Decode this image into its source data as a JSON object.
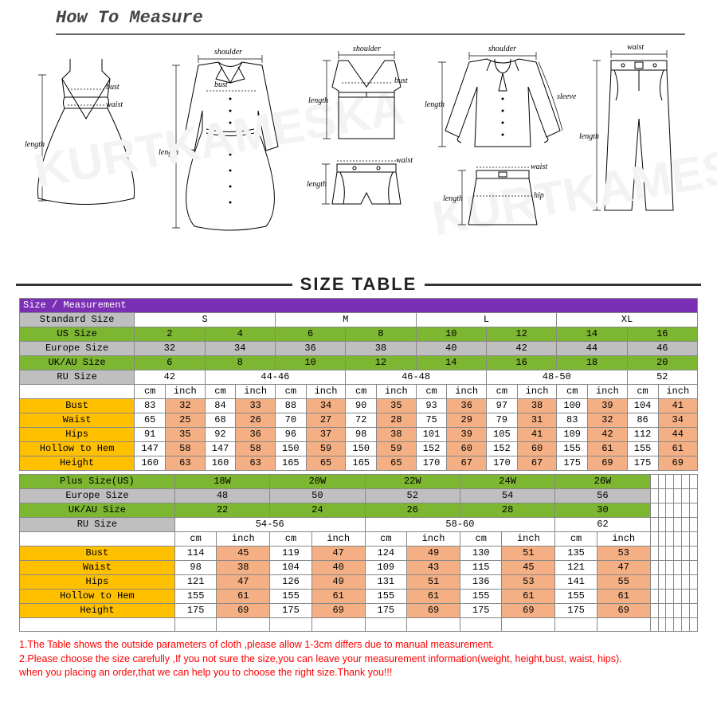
{
  "header": {
    "title": "How To Measure",
    "sizeTableTitle": "SIZE TABLE"
  },
  "watermarks": [
    "KURTKAMESKA",
    "KURTKAMESKA"
  ],
  "diagramLabels": {
    "bust": "bust",
    "waist": "waist",
    "length": "length",
    "shoulder": "shoulder",
    "hip": "hip",
    "sleeve": "sleeve"
  },
  "table1": {
    "title": "Size / Measurement",
    "rows": [
      {
        "label": "Standard Size",
        "class": "grey",
        "spans": [
          [
            "S",
            2
          ],
          [
            "M",
            2
          ],
          [
            "L",
            2
          ],
          [
            "XL",
            2
          ]
        ]
      },
      {
        "label": "US Size",
        "class": "green",
        "cells": [
          "2",
          "4",
          "6",
          "8",
          "10",
          "12",
          "14",
          "16"
        ]
      },
      {
        "label": "Europe Size",
        "class": "grey",
        "cells": [
          "32",
          "34",
          "36",
          "38",
          "40",
          "42",
          "44",
          "46"
        ]
      },
      {
        "label": "UK/AU Size",
        "class": "green",
        "cells": [
          "6",
          "8",
          "10",
          "12",
          "14",
          "16",
          "18",
          "20"
        ]
      },
      {
        "label": "RU Size",
        "class": "grey",
        "spans": [
          [
            "42",
            1
          ],
          [
            "44-46",
            2
          ],
          [
            "46-48",
            2
          ],
          [
            "48-50",
            2
          ],
          [
            "52",
            1
          ]
        ]
      },
      {
        "units": true,
        "cells": [
          "cm",
          "inch",
          "cm",
          "inch",
          "cm",
          "inch",
          "cm",
          "inch",
          "cm",
          "inch",
          "cm",
          "inch",
          "cm",
          "inch",
          "cm",
          "inch"
        ]
      }
    ],
    "body": [
      {
        "label": "Bust",
        "cm": [
          "83",
          "84",
          "88",
          "90",
          "93",
          "97",
          "100",
          "104"
        ],
        "in": [
          "32",
          "33",
          "34",
          "35",
          "36",
          "38",
          "39",
          "41"
        ]
      },
      {
        "label": "Waist",
        "cm": [
          "65",
          "68",
          "70",
          "72",
          "75",
          "79",
          "83",
          "86"
        ],
        "in": [
          "25",
          "26",
          "27",
          "28",
          "29",
          "31",
          "32",
          "34"
        ]
      },
      {
        "label": "Hips",
        "cm": [
          "91",
          "92",
          "96",
          "98",
          "101",
          "105",
          "109",
          "112"
        ],
        "in": [
          "35",
          "36",
          "37",
          "38",
          "39",
          "41",
          "42",
          "44"
        ]
      },
      {
        "label": "Hollow to Hem",
        "cm": [
          "147",
          "147",
          "150",
          "150",
          "152",
          "152",
          "155",
          "155"
        ],
        "in": [
          "58",
          "58",
          "59",
          "59",
          "60",
          "60",
          "61",
          "61"
        ]
      },
      {
        "label": "Height",
        "cm": [
          "160",
          "160",
          "165",
          "165",
          "170",
          "170",
          "175",
          "175"
        ],
        "in": [
          "63",
          "63",
          "65",
          "65",
          "67",
          "67",
          "69",
          "69"
        ]
      }
    ]
  },
  "table2": {
    "rows": [
      {
        "label": "Plus Size(US)",
        "class": "green",
        "cells": [
          "18W",
          "20W",
          "22W",
          "24W",
          "26W",
          ""
        ],
        "trail": 6
      },
      {
        "label": "Europe Size",
        "class": "grey",
        "cells": [
          "48",
          "50",
          "52",
          "54",
          "56",
          ""
        ],
        "trail": 6
      },
      {
        "label": "UK/AU Size",
        "class": "green",
        "cells": [
          "22",
          "24",
          "26",
          "28",
          "30",
          ""
        ],
        "trail": 6
      },
      {
        "label": "RU Size",
        "class": "grey",
        "spans": [
          [
            "54-56",
            2
          ],
          [
            "58-60",
            2
          ],
          [
            "62",
            1
          ],
          [
            "",
            1
          ]
        ],
        "trail": 6
      },
      {
        "units": true,
        "cells": [
          "cm",
          "inch",
          "cm",
          "inch",
          "cm",
          "inch",
          "cm",
          "inch",
          "cm",
          "inch",
          "",
          "",
          "",
          "",
          "",
          "",
          ""
        ],
        "trail": 0
      }
    ],
    "body": [
      {
        "label": "Bust",
        "cm": [
          "114",
          "119",
          "124",
          "130",
          "135"
        ],
        "in": [
          "45",
          "47",
          "49",
          "51",
          "53"
        ]
      },
      {
        "label": "Waist",
        "cm": [
          "98",
          "104",
          "109",
          "115",
          "121"
        ],
        "in": [
          "38",
          "40",
          "43",
          "45",
          "47"
        ]
      },
      {
        "label": "Hips",
        "cm": [
          "121",
          "126",
          "131",
          "136",
          "141"
        ],
        "in": [
          "47",
          "49",
          "51",
          "53",
          "55"
        ]
      },
      {
        "label": "Hollow to Hem",
        "cm": [
          "155",
          "155",
          "155",
          "155",
          "155"
        ],
        "in": [
          "61",
          "61",
          "61",
          "61",
          "61"
        ]
      },
      {
        "label": "Height",
        "cm": [
          "175",
          "175",
          "175",
          "175",
          "175"
        ],
        "in": [
          "69",
          "69",
          "69",
          "69",
          "69"
        ]
      }
    ]
  },
  "notes": [
    "1.The Table shows the outside parameters of cloth ,please allow 1-3cm differs due to manual measurement.",
    "2.Please choose the size carefully ,If you not sure the size,you can leave your measurement information(weight, height,bust, waist, hips).",
    "   when you placing an order,that we can help you to choose the right size.Thank you!!!"
  ],
  "colors": {
    "purple": "#7b2fb5",
    "green": "#7db631",
    "grey": "#bfbfbf",
    "orange": "#ffc000",
    "peach": "#f4b084",
    "border": "#888888",
    "red": "#ff0000"
  }
}
